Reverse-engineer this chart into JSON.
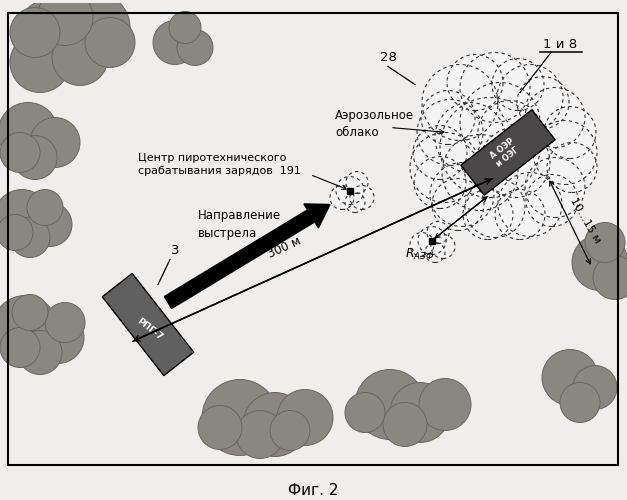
{
  "bg_color": "#c0bcb8",
  "fig_caption": "Фиг. 2",
  "terrain_color": "#8a8680",
  "terrain_edge": "#6a6460",
  "cloud_fill": "#f0f0f0",
  "oer_fill": "#4a4848",
  "rpg_fill": "#606060",
  "label_28": "28",
  "label_1i8": "1 и 8",
  "label_3": "3",
  "label_rpg": "РПГ-7",
  "label_aerosol": "Аэрозольное\nоблако",
  "label_center": "Центр пиротехнического\nсрабатывания зарядов  191",
  "label_direction": "Направление\nвыстрела",
  "label_300m": "300 м",
  "label_razf": "R",
  "label_10_15m": "10...15 м"
}
